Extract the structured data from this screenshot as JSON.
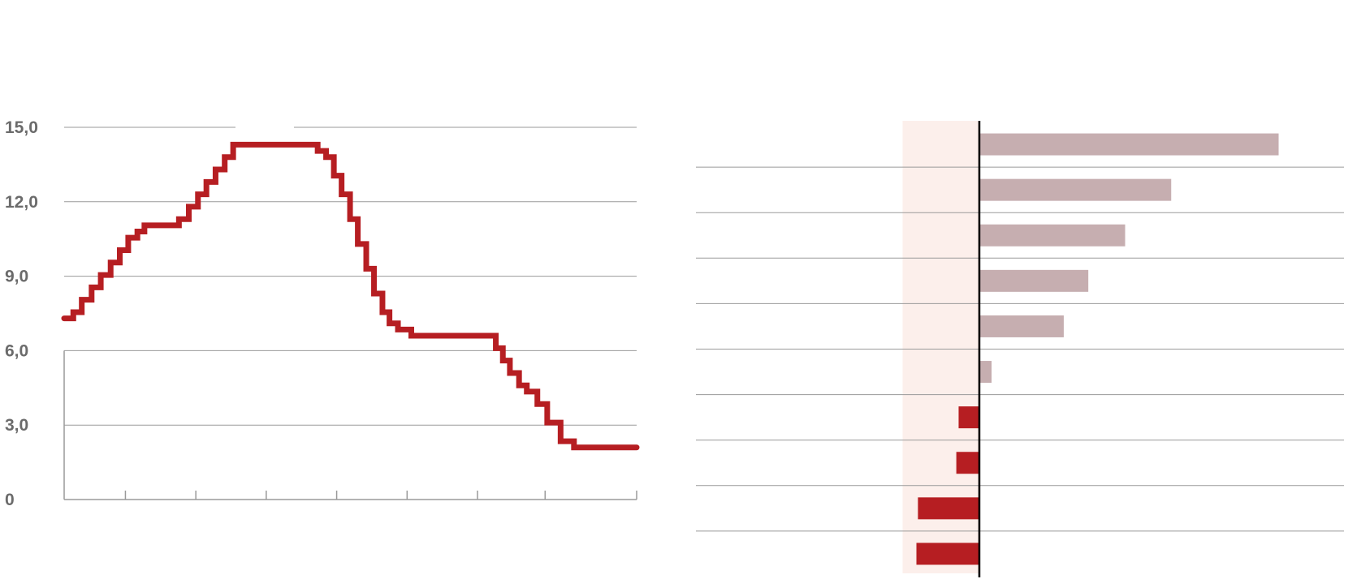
{
  "colors": {
    "line": "#b61e22",
    "neg_bar": "#b61e22",
    "pos_bar": "#c6aeb0",
    "highlight": "#fcefeb",
    "grid": "#9a9a9a",
    "axis": "#000000",
    "text": "#6b6b6b"
  },
  "chart_data": [
    {
      "type": "line",
      "step": true,
      "title": "",
      "xlabel": "",
      "ylabel": "",
      "ylim": [
        0,
        15
      ],
      "xlim": [
        0,
        8.13
      ],
      "y_ticks": [
        0,
        3,
        6,
        9,
        12,
        15
      ],
      "y_tick_labels": [
        "0",
        "3,0",
        "6,0",
        "9,0",
        "12,0",
        "15,0"
      ],
      "x_ticks": [
        0.87,
        1.87,
        2.87,
        3.87,
        4.87,
        5.87,
        6.83,
        8.13
      ],
      "grid": true,
      "series": [
        {
          "x": [
            0,
            0.13,
            0.25,
            0.39,
            0.52,
            0.66,
            0.79,
            0.91,
            1.04,
            1.14,
            1.37,
            1.63,
            1.77,
            1.9,
            2.02,
            2.15,
            2.28,
            2.4,
            3.49,
            3.6,
            3.72,
            3.83,
            3.94,
            4.06,
            4.17,
            4.29,
            4.4,
            4.52,
            4.62,
            4.74,
            4.87,
            4.93,
            5.07,
            6.13,
            6.23,
            6.33,
            6.46,
            6.57,
            6.72,
            6.86,
            7.05,
            7.24,
            8.13
          ],
          "y": [
            7.3,
            7.55,
            8.05,
            8.55,
            9.05,
            9.55,
            10.05,
            10.55,
            10.8,
            11.05,
            11.05,
            11.3,
            11.8,
            12.3,
            12.8,
            13.3,
            13.8,
            14.3,
            14.3,
            14.05,
            13.8,
            13.05,
            12.3,
            11.3,
            10.3,
            9.3,
            8.3,
            7.55,
            7.1,
            6.85,
            6.85,
            6.6,
            6.6,
            6.1,
            5.6,
            5.1,
            4.6,
            4.35,
            3.85,
            3.1,
            2.35,
            2.1,
            2.1
          ]
        }
      ]
    },
    {
      "type": "bar",
      "orientation": "horizontal",
      "title": "",
      "xlabel": "",
      "ylabel": "",
      "xlim": [
        -1.0,
        4.6
      ],
      "grid": true,
      "categories": [
        "",
        "",
        "",
        "",
        "",
        "",
        "",
        "",
        "",
        ""
      ],
      "values": [
        3.9,
        2.5,
        1.9,
        1.42,
        1.1,
        0.16,
        -0.27,
        -0.3,
        -0.8,
        -0.82
      ]
    }
  ]
}
